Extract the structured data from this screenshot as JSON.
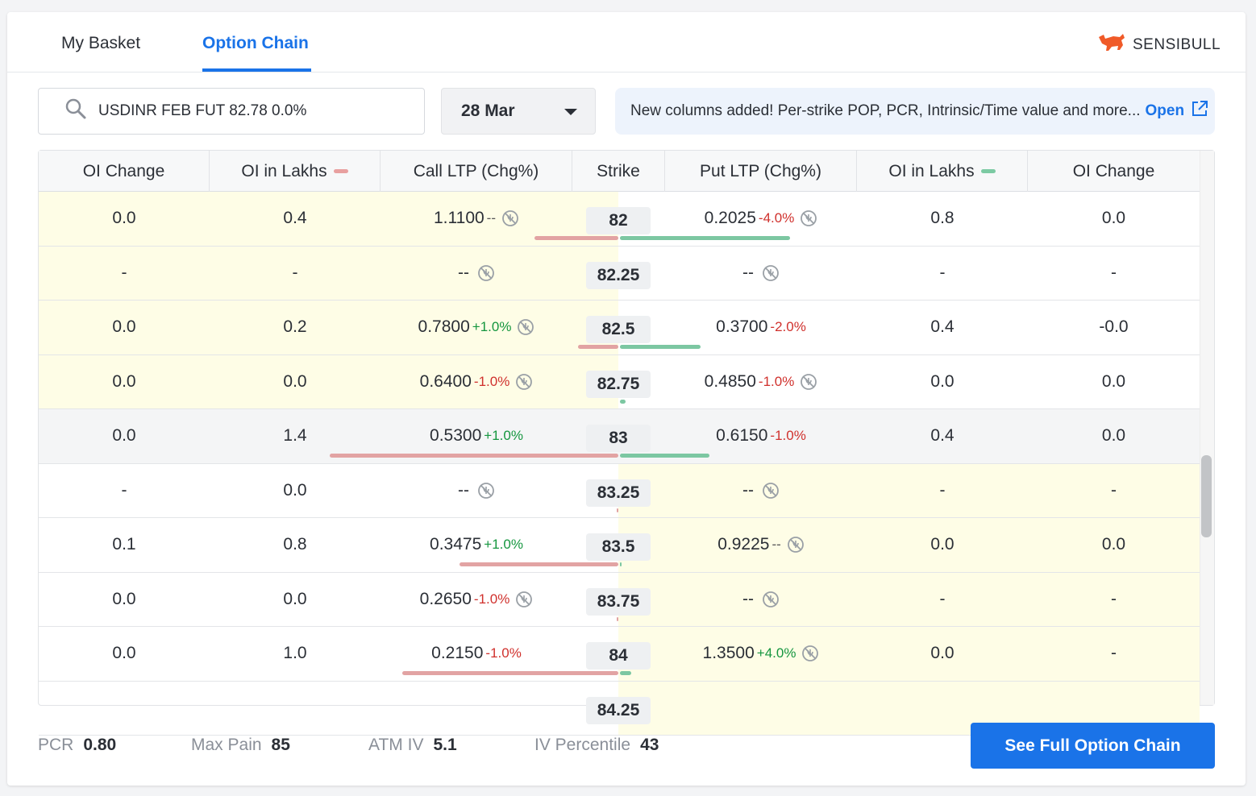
{
  "tabs": [
    {
      "label": "My Basket",
      "active": false
    },
    {
      "label": "Option Chain",
      "active": true
    }
  ],
  "brand": {
    "name": "SENSIBULL",
    "color": "#f05a28"
  },
  "search": {
    "value": "USDINR FEB FUT 82.78 0.0%"
  },
  "expiry": {
    "selected": "28 Mar"
  },
  "notice": {
    "text": "New columns added! Per-strike POP, PCR, Intrinsic/Time value and more...",
    "link": "Open"
  },
  "table": {
    "headers": [
      "OI Change",
      "OI in Lakhs",
      "Call LTP (Chg%)",
      "Strike",
      "Put LTP (Chg%)",
      "OI in Lakhs",
      "OI Change"
    ],
    "rows": [
      {
        "call_oi_chg": "0.0",
        "call_oi": "0.4",
        "call_ltp": "1.1100",
        "call_chg": "--",
        "call_chg_dir": "flat",
        "call_nosym": true,
        "strike": "82",
        "put_ltp": "0.2025",
        "put_chg": "-4.0%",
        "put_chg_dir": "down",
        "put_nosym": true,
        "put_oi": "0.8",
        "put_oi_chg": "0.0",
        "call_itm": true,
        "put_itm": false,
        "atm": false,
        "call_oi_bar": 0.29,
        "put_oi_bar": 0.59
      },
      {
        "call_oi_chg": "-",
        "call_oi": "-",
        "call_ltp": "--",
        "call_chg": "",
        "call_chg_dir": "flat",
        "call_nosym": true,
        "strike": "82.25",
        "put_ltp": "--",
        "put_chg": "",
        "put_chg_dir": "flat",
        "put_nosym": true,
        "put_oi": "-",
        "put_oi_chg": "-",
        "call_itm": true,
        "put_itm": false,
        "atm": false,
        "call_oi_bar": 0,
        "put_oi_bar": 0
      },
      {
        "call_oi_chg": "0.0",
        "call_oi": "0.2",
        "call_ltp": "0.7800",
        "call_chg": "+1.0%",
        "call_chg_dir": "up",
        "call_nosym": true,
        "strike": "82.5",
        "put_ltp": "0.3700",
        "put_chg": "-2.0%",
        "put_chg_dir": "down",
        "put_nosym": false,
        "put_oi": "0.4",
        "put_oi_chg": "-0.0",
        "call_itm": true,
        "put_itm": false,
        "atm": false,
        "call_oi_bar": 0.14,
        "put_oi_bar": 0.28
      },
      {
        "call_oi_chg": "0.0",
        "call_oi": "0.0",
        "call_ltp": "0.6400",
        "call_chg": "-1.0%",
        "call_chg_dir": "down",
        "call_nosym": true,
        "strike": "82.75",
        "put_ltp": "0.4850",
        "put_chg": "-1.0%",
        "put_chg_dir": "down",
        "put_nosym": true,
        "put_oi": "0.0",
        "put_oi_chg": "0.0",
        "call_itm": true,
        "put_itm": false,
        "atm": false,
        "call_oi_bar": 0,
        "put_oi_bar": 0.02
      },
      {
        "call_oi_chg": "0.0",
        "call_oi": "1.4",
        "call_ltp": "0.5300",
        "call_chg": "+1.0%",
        "call_chg_dir": "up",
        "call_nosym": false,
        "strike": "83",
        "put_ltp": "0.6150",
        "put_chg": "-1.0%",
        "put_chg_dir": "down",
        "put_nosym": false,
        "put_oi": "0.4",
        "put_oi_chg": "0.0",
        "call_itm": false,
        "put_itm": false,
        "atm": true,
        "call_oi_bar": 1.0,
        "put_oi_bar": 0.31
      },
      {
        "call_oi_chg": "-",
        "call_oi": "0.0",
        "call_ltp": "--",
        "call_chg": "",
        "call_chg_dir": "flat",
        "call_nosym": true,
        "strike": "83.25",
        "put_ltp": "--",
        "put_chg": "",
        "put_chg_dir": "flat",
        "put_nosym": true,
        "put_oi": "-",
        "put_oi_chg": "-",
        "call_itm": false,
        "put_itm": true,
        "atm": false,
        "call_oi_bar": 0.005,
        "put_oi_bar": 0
      },
      {
        "call_oi_chg": "0.1",
        "call_oi": "0.8",
        "call_ltp": "0.3475",
        "call_chg": "+1.0%",
        "call_chg_dir": "up",
        "call_nosym": false,
        "strike": "83.5",
        "put_ltp": "0.9225",
        "put_chg": "--",
        "put_chg_dir": "flat",
        "put_nosym": true,
        "put_oi": "0.0",
        "put_oi_chg": "0.0",
        "call_itm": false,
        "put_itm": true,
        "atm": false,
        "call_oi_bar": 0.55,
        "put_oi_bar": 0.005
      },
      {
        "call_oi_chg": "0.0",
        "call_oi": "0.0",
        "call_ltp": "0.2650",
        "call_chg": "-1.0%",
        "call_chg_dir": "down",
        "call_nosym": true,
        "strike": "83.75",
        "put_ltp": "--",
        "put_chg": "",
        "put_chg_dir": "flat",
        "put_nosym": true,
        "put_oi": "-",
        "put_oi_chg": "-",
        "call_itm": false,
        "put_itm": true,
        "atm": false,
        "call_oi_bar": 0.005,
        "put_oi_bar": 0
      },
      {
        "call_oi_chg": "0.0",
        "call_oi": "1.0",
        "call_ltp": "0.2150",
        "call_chg": "-1.0%",
        "call_chg_dir": "down",
        "call_nosym": false,
        "strike": "84",
        "put_ltp": "1.3500",
        "put_chg": "+4.0%",
        "put_chg_dir": "up",
        "put_nosym": true,
        "put_oi": "0.0",
        "put_oi_chg": "-",
        "call_itm": false,
        "put_itm": true,
        "atm": false,
        "call_oi_bar": 0.75,
        "put_oi_bar": 0.04
      },
      {
        "call_oi_chg": "",
        "call_oi": "",
        "call_ltp": "",
        "call_chg": "",
        "call_chg_dir": "flat",
        "call_nosym": true,
        "strike": "84.25",
        "put_ltp": "",
        "put_chg": "",
        "put_chg_dir": "flat",
        "put_nosym": true,
        "put_oi": "",
        "put_oi_chg": "",
        "call_itm": false,
        "put_itm": true,
        "atm": false,
        "call_oi_bar": 0,
        "put_oi_bar": 0
      }
    ]
  },
  "stats": [
    {
      "label": "PCR",
      "value": "0.80"
    },
    {
      "label": "Max Pain",
      "value": "85"
    },
    {
      "label": "ATM IV",
      "value": "5.1"
    },
    {
      "label": "IV Percentile",
      "value": "43"
    }
  ],
  "cta": {
    "label": "See Full Option Chain"
  },
  "colors": {
    "accent": "#1a73e8",
    "itm_bg": "#fefde6",
    "call_bar": "#e2a3a3",
    "put_bar": "#7cc7a2",
    "up": "#15963f",
    "down": "#d0312d"
  }
}
